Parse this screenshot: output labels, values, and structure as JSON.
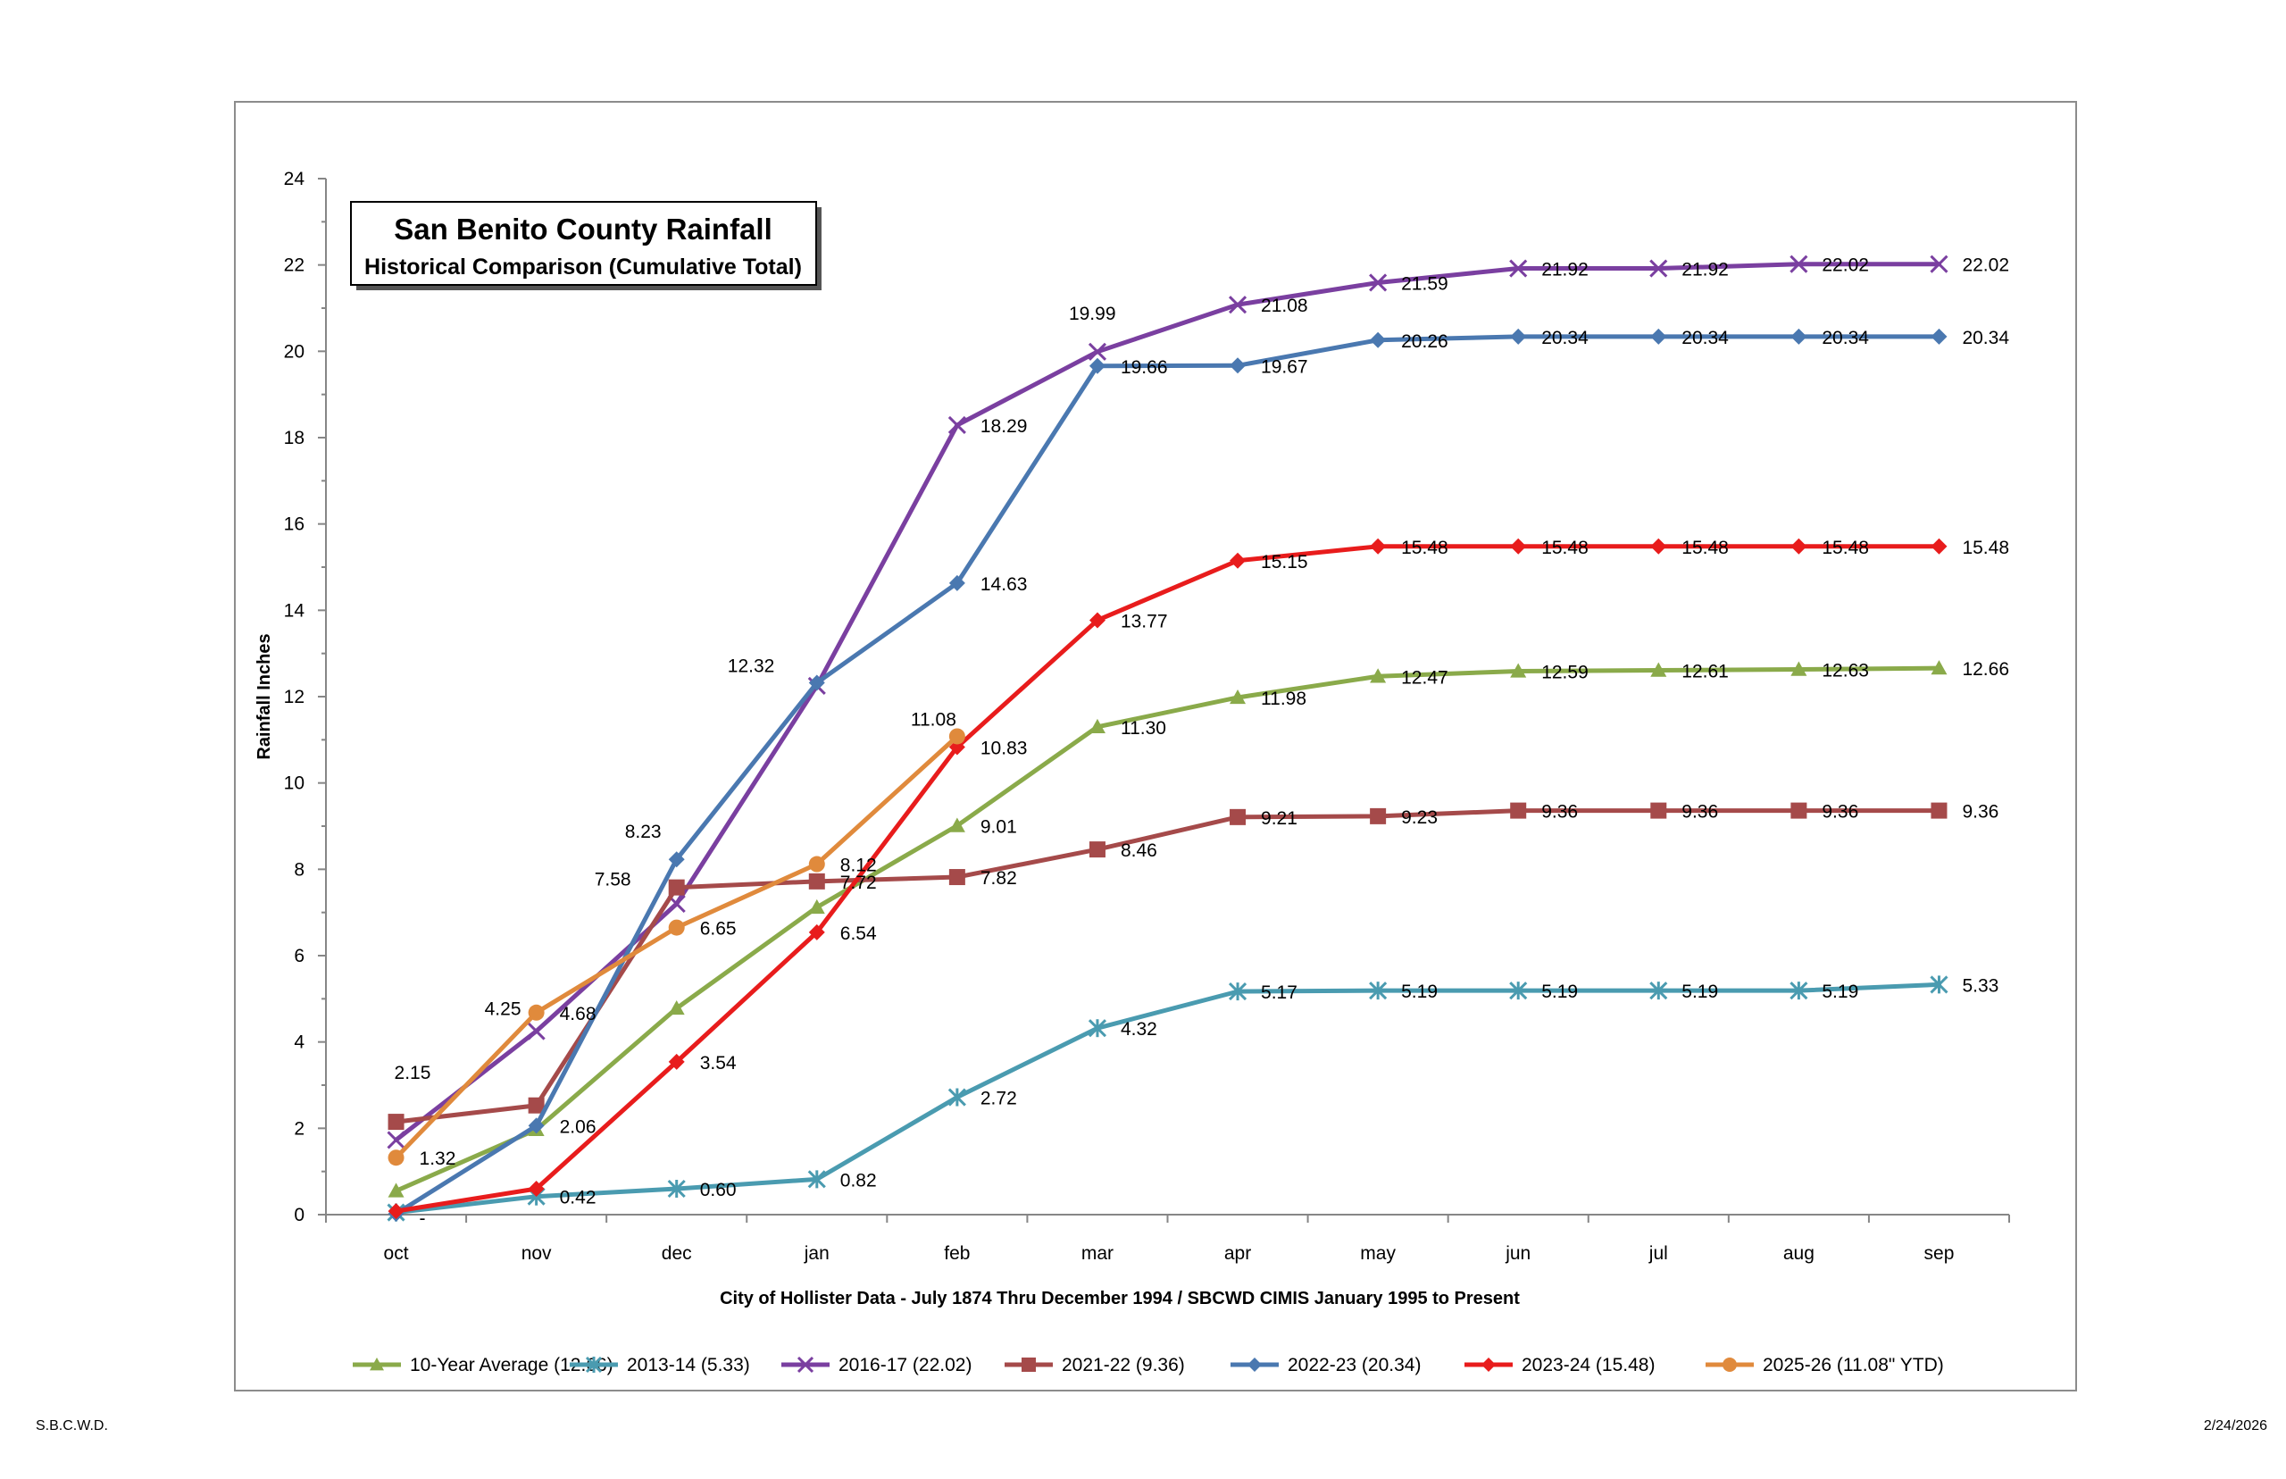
{
  "footer": {
    "left": "S.B.C.W.D.",
    "right": "2/24/2026"
  },
  "chart_data": {
    "type": "line",
    "title": "San Benito County Rainfall",
    "subtitle": "Historical Comparison (Cumulative Total)",
    "xlabel": "City of Hollister Data - July 1874 Thru December 1994 / SBCWD CIMIS January 1995 to Present",
    "ylabel": "Rainfall Inches",
    "ylim": [
      0,
      24
    ],
    "yticks": [
      0,
      2,
      4,
      6,
      8,
      10,
      12,
      14,
      16,
      18,
      20,
      22,
      24
    ],
    "grid": false,
    "legend_position": "bottom",
    "categories": [
      "oct",
      "nov",
      "dec",
      "jan",
      "feb",
      "mar",
      "apr",
      "may",
      "jun",
      "jul",
      "aug",
      "sep"
    ],
    "series": [
      {
        "name": "10-Year Average (12.66)",
        "color": "#8AAA4A",
        "marker": "triangle",
        "values": [
          0.55,
          1.97,
          4.78,
          7.12,
          9.01,
          11.3,
          11.98,
          12.47,
          12.59,
          12.61,
          12.63,
          12.66
        ],
        "labels": [
          "",
          "",
          "",
          "",
          "9.01",
          "11.30",
          "11.98",
          "12.47",
          "12.59",
          "12.61",
          "12.63",
          "12.66"
        ]
      },
      {
        "name": "2013-14 (5.33)",
        "color": "#4A9BB0",
        "marker": "star",
        "values": [
          0.05,
          0.42,
          0.6,
          0.82,
          2.72,
          4.32,
          5.17,
          5.19,
          5.19,
          5.19,
          5.19,
          5.33
        ],
        "labels": [
          "",
          "0.42",
          "0.60",
          "0.82",
          "2.72",
          "4.32",
          "5.17",
          "5.19",
          "5.19",
          "5.19",
          "5.19",
          "5.33"
        ]
      },
      {
        "name": "2016-17 (22.02)",
        "color": "#7A3FA0",
        "marker": "x",
        "values": [
          1.73,
          4.25,
          7.2,
          12.25,
          18.29,
          19.99,
          21.08,
          21.59,
          21.92,
          21.92,
          22.02,
          22.02
        ],
        "labels": [
          "",
          "4.25",
          "",
          "",
          "18.29",
          "19.99",
          "21.08",
          "21.59",
          "21.92",
          "21.92",
          "22.02",
          "22.02"
        ]
      },
      {
        "name": "2021-22 (9.36)",
        "color": "#A54A4A",
        "marker": "square",
        "values": [
          2.15,
          2.53,
          7.58,
          7.72,
          7.82,
          8.46,
          9.21,
          9.23,
          9.36,
          9.36,
          9.36,
          9.36
        ],
        "labels": [
          "2.15",
          "",
          "7.58",
          "7.72",
          "7.82",
          "8.46",
          "9.21",
          "9.23",
          "9.36",
          "9.36",
          "9.36",
          "9.36"
        ]
      },
      {
        "name": "2022-23 (20.34)",
        "color": "#4A78B0",
        "marker": "diamond",
        "values": [
          0.02,
          2.06,
          8.23,
          12.32,
          14.63,
          19.66,
          19.67,
          20.26,
          20.34,
          20.34,
          20.34,
          20.34
        ],
        "labels": [
          "-",
          "2.06",
          "8.23",
          "12.32",
          "14.63",
          "19.66",
          "19.67",
          "20.26",
          "20.34",
          "20.34",
          "20.34",
          "20.34"
        ]
      },
      {
        "name": "2023-24 (15.48)",
        "color": "#E81C1C",
        "marker": "diamond",
        "values": [
          0.08,
          0.6,
          3.54,
          6.54,
          10.83,
          13.77,
          15.15,
          15.48,
          15.48,
          15.48,
          15.48,
          15.48
        ],
        "labels": [
          "",
          "",
          "3.54",
          "6.54",
          "10.83",
          "13.77",
          "15.15",
          "15.48",
          "15.48",
          "15.48",
          "15.48",
          "15.48"
        ]
      },
      {
        "name": "2025-26 (11.08\" YTD)",
        "color": "#E08A3C",
        "marker": "circle",
        "values": [
          1.32,
          4.68,
          6.65,
          8.12,
          11.08,
          null,
          null,
          null,
          null,
          null,
          null,
          null
        ],
        "labels": [
          "1.32",
          "4.68",
          "6.65",
          "8.12",
          "11.08",
          "",
          "",
          "",
          "",
          "",
          "",
          ""
        ]
      }
    ]
  }
}
